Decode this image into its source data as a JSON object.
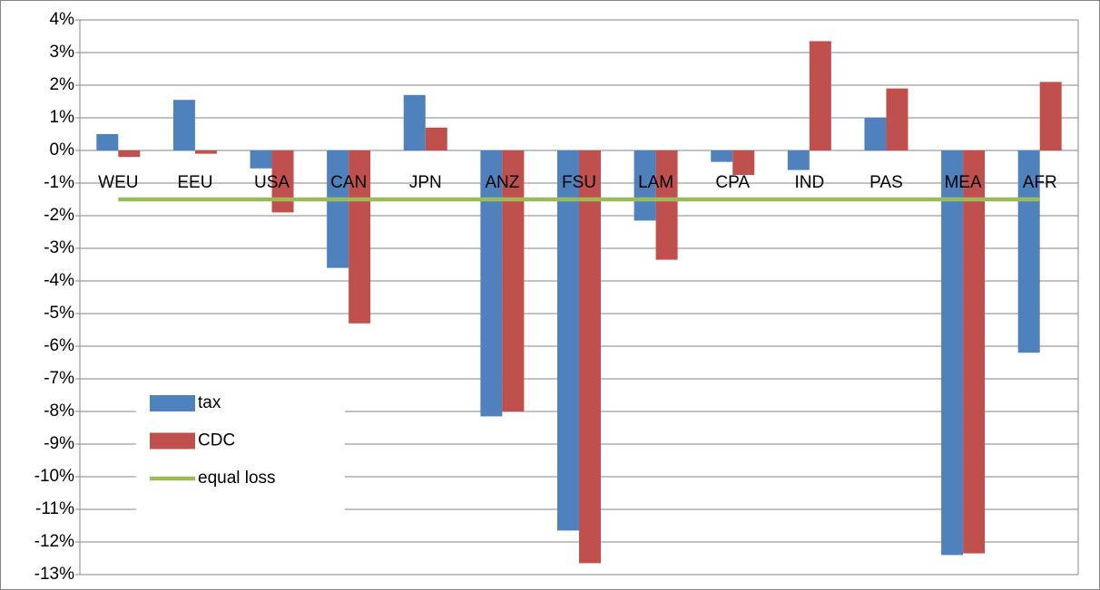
{
  "chart_data": {
    "type": "bar",
    "categories": [
      "WEU",
      "EEU",
      "USA",
      "CAN",
      "JPN",
      "ANZ",
      "FSU",
      "LAM",
      "CPA",
      "IND",
      "PAS",
      "MEA",
      "AFR"
    ],
    "series": [
      {
        "name": "tax",
        "color": "#4f81bd",
        "values": [
          0.5,
          1.55,
          -0.55,
          -3.6,
          1.7,
          -8.15,
          -11.65,
          -2.15,
          -0.35,
          -0.6,
          1.0,
          -12.4,
          -6.2
        ]
      },
      {
        "name": "CDC",
        "color": "#c0504d",
        "values": [
          -0.2,
          -0.1,
          -1.9,
          -5.3,
          0.7,
          -8.0,
          -12.65,
          -3.35,
          -0.75,
          3.35,
          1.9,
          -12.35,
          2.1
        ]
      },
      {
        "name": "equal loss",
        "color": "#9bbb59",
        "type": "line",
        "values": [
          -1.5,
          -1.5,
          -1.5,
          -1.5,
          -1.5,
          -1.5,
          -1.5,
          -1.5,
          -1.5,
          -1.5,
          -1.5,
          -1.5,
          -1.5
        ]
      }
    ],
    "ylim": [
      -13,
      4
    ],
    "yticks": [
      {
        "value": 4,
        "label": "4%"
      },
      {
        "value": 3,
        "label": "3%"
      },
      {
        "value": 2,
        "label": "2%"
      },
      {
        "value": 1,
        "label": "1%"
      },
      {
        "value": 0,
        "label": "0%"
      },
      {
        "value": -1,
        "label": "-1%"
      },
      {
        "value": -2,
        "label": "-2%"
      },
      {
        "value": -3,
        "label": "-3%"
      },
      {
        "value": -4,
        "label": "-4%"
      },
      {
        "value": -5,
        "label": "-5%"
      },
      {
        "value": -6,
        "label": "-6%"
      },
      {
        "value": -7,
        "label": "-7%"
      },
      {
        "value": -8,
        "label": "-8%"
      },
      {
        "value": -9,
        "label": "-9%"
      },
      {
        "value": -10,
        "label": "-10%"
      },
      {
        "value": -11,
        "label": "-11%"
      },
      {
        "value": -12,
        "label": "-12%"
      },
      {
        "value": -13,
        "label": "-13%"
      }
    ],
    "grid": true,
    "legend": "lower left"
  }
}
